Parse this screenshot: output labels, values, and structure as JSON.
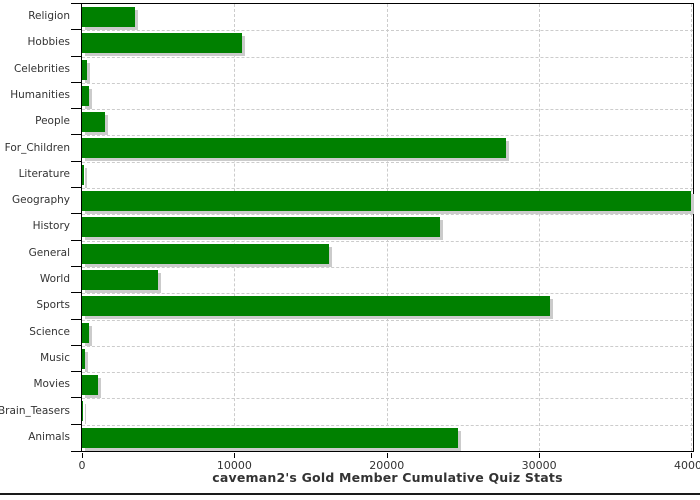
{
  "chart_data": {
    "type": "bar",
    "orientation": "horizontal",
    "title": "caveman2's Gold Member Cumulative Quiz Stats",
    "categories": [
      "Religion",
      "Hobbies",
      "Celebrities",
      "Humanities",
      "People",
      "For_Children",
      "Literature",
      "Geography",
      "History",
      "General",
      "World",
      "Sports",
      "Science",
      "Music",
      "Movies",
      "Brain_Teasers",
      "Animals"
    ],
    "values": [
      3500,
      10500,
      300,
      450,
      1500,
      27800,
      100,
      40000,
      23500,
      16200,
      5000,
      30700,
      430,
      190,
      1050,
      80,
      24700
    ],
    "x_ticks": [
      0,
      10000,
      20000,
      30000,
      40000
    ],
    "x_tick_labels": [
      "0",
      "10000",
      "20000",
      "30000",
      "40000"
    ],
    "xlim": [
      0,
      40000
    ],
    "grid": true,
    "legend": "none",
    "xlabel": "",
    "ylabel": "",
    "colors": {
      "bar": "#008000",
      "bar_shadow": "#cbcbcb",
      "grid": "#cccccc",
      "axis": "#000000",
      "text": "#333333",
      "background": "#ffffff"
    }
  }
}
